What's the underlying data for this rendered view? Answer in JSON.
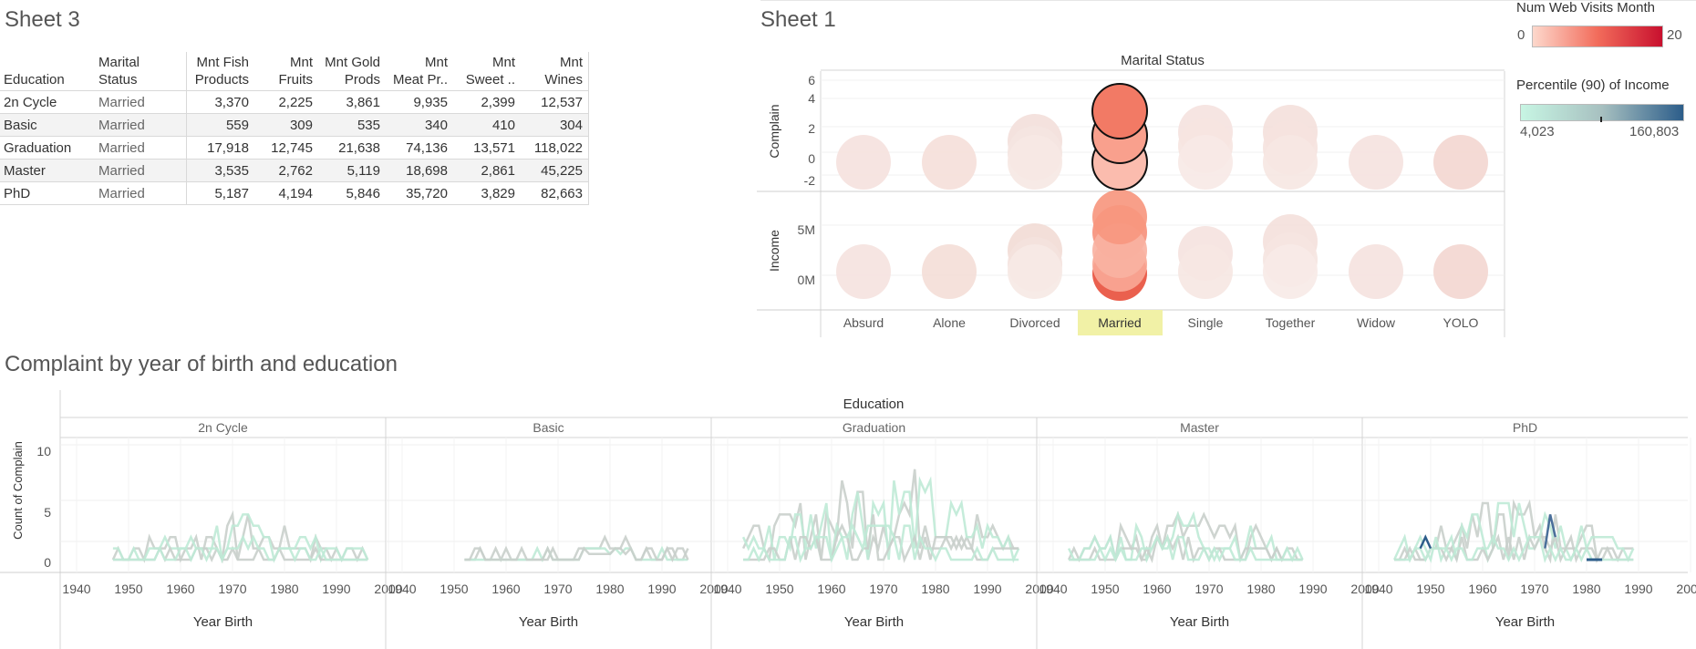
{
  "sheet3": {
    "title": "Sheet 3",
    "headers": {
      "education": "Education",
      "marital_status_1": "Marital",
      "marital_status_2": "Status",
      "columns": [
        {
          "l1": "Mnt Fish",
          "l2": "Products"
        },
        {
          "l1": "Mnt",
          "l2": "Fruits"
        },
        {
          "l1": "Mnt Gold",
          "l2": "Prods"
        },
        {
          "l1": "Mnt",
          "l2": "Meat Pr.."
        },
        {
          "l1": "Mnt",
          "l2": "Sweet .."
        },
        {
          "l1": "Mnt",
          "l2": "Wines"
        }
      ]
    },
    "rows": [
      {
        "education": "2n Cycle",
        "marital": "Married",
        "values": [
          "3,370",
          "2,225",
          "3,861",
          "9,935",
          "2,399",
          "12,537"
        ]
      },
      {
        "education": "Basic",
        "marital": "Married",
        "values": [
          "559",
          "309",
          "535",
          "340",
          "410",
          "304"
        ]
      },
      {
        "education": "Graduation",
        "marital": "Married",
        "values": [
          "17,918",
          "12,745",
          "21,638",
          "74,136",
          "13,571",
          "118,022"
        ]
      },
      {
        "education": "Master",
        "marital": "Married",
        "values": [
          "3,535",
          "2,762",
          "5,119",
          "18,698",
          "2,861",
          "45,225"
        ]
      },
      {
        "education": "PhD",
        "marital": "Married",
        "values": [
          "5,187",
          "4,194",
          "5,846",
          "35,720",
          "3,829",
          "82,663"
        ]
      }
    ]
  },
  "sheet1": {
    "title": "Sheet 1",
    "column_header": "Marital Status",
    "categories": [
      "Absurd",
      "Alone",
      "Divorced",
      "Married",
      "Single",
      "Together",
      "Widow",
      "YOLO"
    ],
    "highlighted": "Married",
    "complain_axis": {
      "label": "Complain",
      "ticks": [
        "6",
        "4",
        "2",
        "0",
        "-2"
      ]
    },
    "income_axis": {
      "label": "Income",
      "ticks": [
        "5M",
        "0M"
      ]
    }
  },
  "legend_visits": {
    "title": "Num Web Visits Month",
    "min": "0",
    "max": "20"
  },
  "legend_income": {
    "title": "Percentile (90) of Income",
    "min": "4,023",
    "max": "160,803"
  },
  "complaint_chart": {
    "title": "Complaint by year of birth and education",
    "column_header": "Education",
    "y_label": "Count of Complain",
    "y_ticks": [
      "10",
      "5",
      "0"
    ],
    "x_title": "Year Birth",
    "x_ticks": [
      "1940",
      "1950",
      "1960",
      "1970",
      "1980",
      "1990",
      "2000"
    ],
    "panels": [
      "2n Cycle",
      "Basic",
      "Graduation",
      "Master",
      "PhD"
    ]
  },
  "colors": {
    "visits_low": "#fdd8cc",
    "visits_high": "#c8102e",
    "income_low": "#c7f5e3",
    "income_high": "#2c5d8a",
    "highlight": "#f1f1a6",
    "line_grey": "#c9cfcb",
    "line_mint": "#bfead6"
  },
  "chart_data": [
    {
      "type": "scatter",
      "title": "Sheet 1",
      "x_label": "Marital Status",
      "categories": [
        "Absurd",
        "Alone",
        "Divorced",
        "Married",
        "Single",
        "Together",
        "Widow",
        "YOLO"
      ],
      "panels": [
        {
          "y_label": "Complain",
          "y_ticks": [
            -2,
            0,
            2,
            4,
            6
          ]
        },
        {
          "y_label": "Income",
          "y_ticks": [
            "0M",
            "5M"
          ]
        }
      ],
      "color_legend": {
        "title": "Num Web Visits Month",
        "range": [
          0,
          20
        ]
      }
    },
    {
      "type": "line",
      "title": "Complaint by year of birth and education",
      "x_label": "Year Birth",
      "y_label": "Count of Complain",
      "xlim": [
        1940,
        2000
      ],
      "ylim": [
        0,
        10
      ],
      "facets": [
        "2n Cycle",
        "Basic",
        "Graduation",
        "Master",
        "PhD"
      ],
      "color_legend": {
        "title": "Percentile (90) of Income",
        "range": [
          4023,
          160803
        ]
      }
    }
  ]
}
